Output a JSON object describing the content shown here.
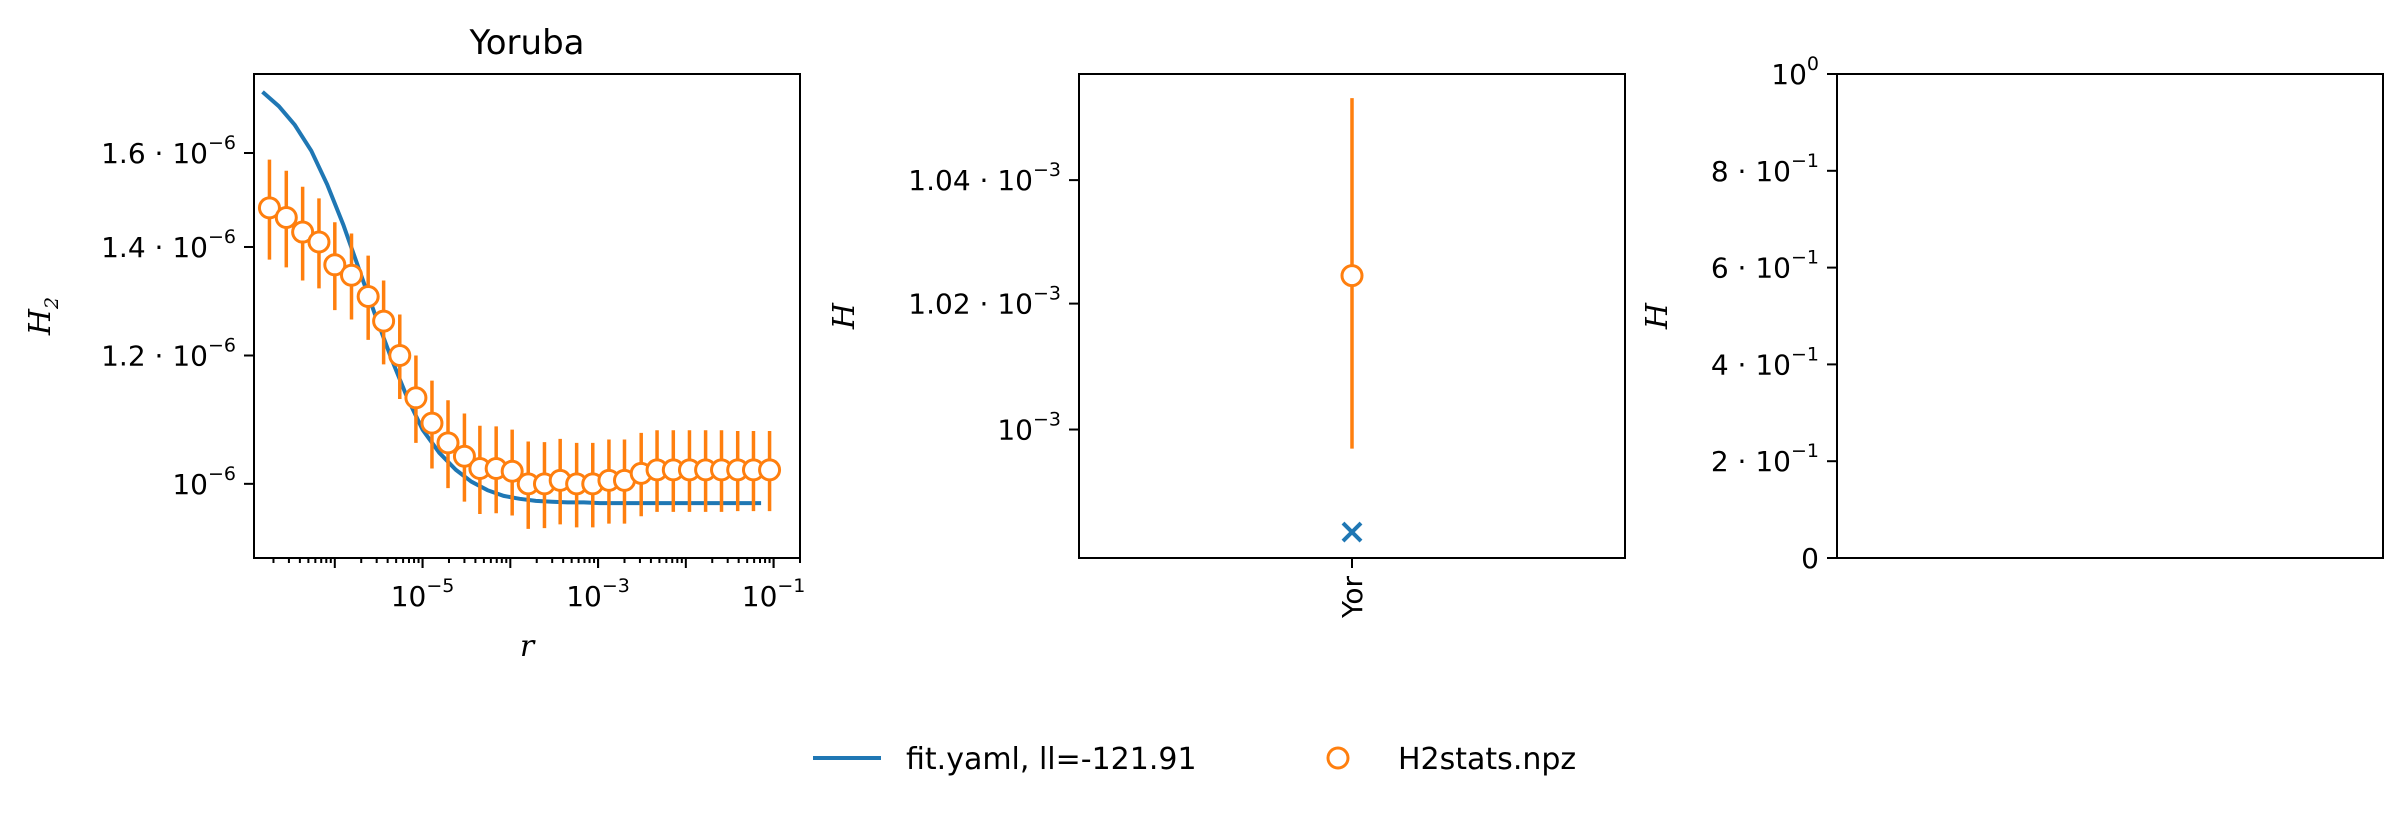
{
  "chart_data": [
    {
      "type": "line",
      "title": "Yoruba",
      "xlabel": "r",
      "ylabel": "H",
      "ylabel_sub": "2",
      "xscale": "log",
      "yscale": "log",
      "xlim": [
        1.2e-07,
        0.2
      ],
      "ylim": [
        9e-07,
        1.79e-06
      ],
      "xticks": [
        {
          "value": 1e-05,
          "base": "10",
          "exp": "−5"
        },
        {
          "value": 0.001,
          "base": "10",
          "exp": "−3"
        },
        {
          "value": 0.1,
          "base": "10",
          "exp": "−1"
        }
      ],
      "yticks": [
        {
          "value": 1e-06,
          "coef": "",
          "base": "10",
          "exp": "−6"
        },
        {
          "value": 1.2e-06,
          "coef": "1.2 · ",
          "base": "10",
          "exp": "−6"
        },
        {
          "value": 1.4e-06,
          "coef": "1.4 · ",
          "base": "10",
          "exp": "−6"
        },
        {
          "value": 1.6e-06,
          "coef": "1.6 · ",
          "base": "10",
          "exp": "−6"
        }
      ],
      "x": [
        1.5e-07,
        2.3e-07,
        3.5e-07,
        5.4e-07,
        8.2e-07,
        1.25e-06,
        1.9e-06,
        2.9e-06,
        4.4e-06,
        6.7e-06,
        1e-05,
        1.55e-05,
        2.4e-05,
        3.6e-05,
        5.5e-05,
        8.4e-05,
        0.000128,
        0.000195,
        0.0003,
        0.00045,
        0.00069,
        0.00105,
        0.0016,
        0.00245,
        0.0037,
        0.0057,
        0.0087,
        0.0133,
        0.02,
        0.031,
        0.047,
        0.072
      ],
      "series": [
        {
          "name": "fit.yaml, ll=-121.91",
          "color": "#1f77b4",
          "style": "line",
          "y": [
            1.745e-06,
            1.71e-06,
            1.665e-06,
            1.605e-06,
            1.53e-06,
            1.445e-06,
            1.355e-06,
            1.27e-06,
            1.195e-06,
            1.13e-06,
            1.08e-06,
            1.045e-06,
            1.02e-06,
            1.003e-06,
            9.91e-07,
            9.83e-07,
            9.79e-07,
            9.76e-07,
            9.75e-07,
            9.74e-07,
            9.74e-07,
            9.73e-07,
            9.73e-07,
            9.73e-07,
            9.73e-07,
            9.73e-07,
            9.73e-07,
            9.73e-07,
            9.73e-07,
            9.73e-07,
            9.73e-07,
            9.73e-07
          ]
        },
        {
          "name": "H2stats.npz",
          "color": "#ff7f0e",
          "style": "errorbar-open-circle",
          "x": [
            1.8e-07,
            2.8e-07,
            4.3e-07,
            6.6e-07,
            1e-06,
            1.55e-06,
            2.4e-06,
            3.6e-06,
            5.5e-06,
            8.4e-06,
            1.28e-05,
            1.95e-05,
            3e-05,
            4.5e-05,
            6.9e-05,
            0.000105,
            0.00016,
            0.000245,
            0.00037,
            0.00057,
            0.00087,
            0.00133,
            0.002,
            0.0031,
            0.0047,
            0.0072,
            0.011,
            0.0168,
            0.0255,
            0.039,
            0.059,
            0.09
          ],
          "y": [
            1.48e-06,
            1.46e-06,
            1.43e-06,
            1.41e-06,
            1.365e-06,
            1.345e-06,
            1.305e-06,
            1.26e-06,
            1.2e-06,
            1.13e-06,
            1.09e-06,
            1.06e-06,
            1.04e-06,
            1.022e-06,
            1.022e-06,
            1.018e-06,
            1e-06,
            1e-06,
            1.005e-06,
            1e-06,
            1e-06,
            1.005e-06,
            1.005e-06,
            1.015e-06,
            1.02e-06,
            1.02e-06,
            1.02e-06,
            1.02e-06,
            1.02e-06,
            1.02e-06,
            1.02e-06,
            1.02e-06
          ],
          "err": [
            1.05e-07,
            1e-07,
            9.5e-08,
            9e-08,
            8.5e-08,
            8.2e-08,
            7.8e-08,
            7.5e-08,
            7.2e-08,
            7e-08,
            6.8e-08,
            6.6e-08,
            6.5e-08,
            6.4e-08,
            6.3e-08,
            6.2e-08,
            6.2e-08,
            6.1e-08,
            6.1e-08,
            6e-08,
            6e-08,
            6e-08,
            6e-08,
            6e-08,
            5.9e-08,
            5.9e-08,
            5.9e-08,
            5.9e-08,
            5.9e-08,
            5.8e-08,
            5.8e-08,
            5.8e-08
          ]
        }
      ]
    },
    {
      "type": "scatter",
      "ylabel": "H",
      "yscale": "log",
      "ylim": [
        0.00098,
        0.0010575
      ],
      "categories": [
        "Yor"
      ],
      "yticks": [
        {
          "value": 0.001,
          "coef": "",
          "base": "10",
          "exp": "−3"
        },
        {
          "value": 0.00102,
          "coef": "1.02 · ",
          "base": "10",
          "exp": "−3"
        },
        {
          "value": 0.00104,
          "coef": "1.04 · ",
          "base": "10",
          "exp": "−3"
        }
      ],
      "series": [
        {
          "name": "H2stats.npz",
          "color": "#ff7f0e",
          "style": "errorbar-open-circle",
          "values": [
            0.0010245
          ],
          "err_low": [
            0.000997
          ],
          "err_high": [
            0.0010535
          ]
        },
        {
          "name": "fit.yaml, ll=-121.91",
          "color": "#1f77b4",
          "style": "x-marker",
          "values": [
            0.000984
          ]
        }
      ]
    },
    {
      "type": "scatter",
      "ylabel": "H",
      "ylim": [
        0,
        1
      ],
      "yticks": [
        {
          "value": 0,
          "coef": "0",
          "base": "",
          "exp": ""
        },
        {
          "value": 0.2,
          "coef": "2 · ",
          "base": "10",
          "exp": "−1"
        },
        {
          "value": 0.4,
          "coef": "4 · ",
          "base": "10",
          "exp": "−1"
        },
        {
          "value": 0.6,
          "coef": "6 · ",
          "base": "10",
          "exp": "−1"
        },
        {
          "value": 0.8,
          "coef": "8 · ",
          "base": "10",
          "exp": "−1"
        },
        {
          "value": 1.0,
          "coef": "",
          "base": "10",
          "exp": "0"
        }
      ],
      "series": []
    }
  ],
  "legend": {
    "placement": "bottom-center",
    "items": [
      {
        "label": "fit.yaml, ll=-121.91",
        "color": "#1f77b4",
        "marker": "line"
      },
      {
        "label": "H2stats.npz",
        "color": "#ff7f0e",
        "marker": "open-circle"
      }
    ]
  }
}
